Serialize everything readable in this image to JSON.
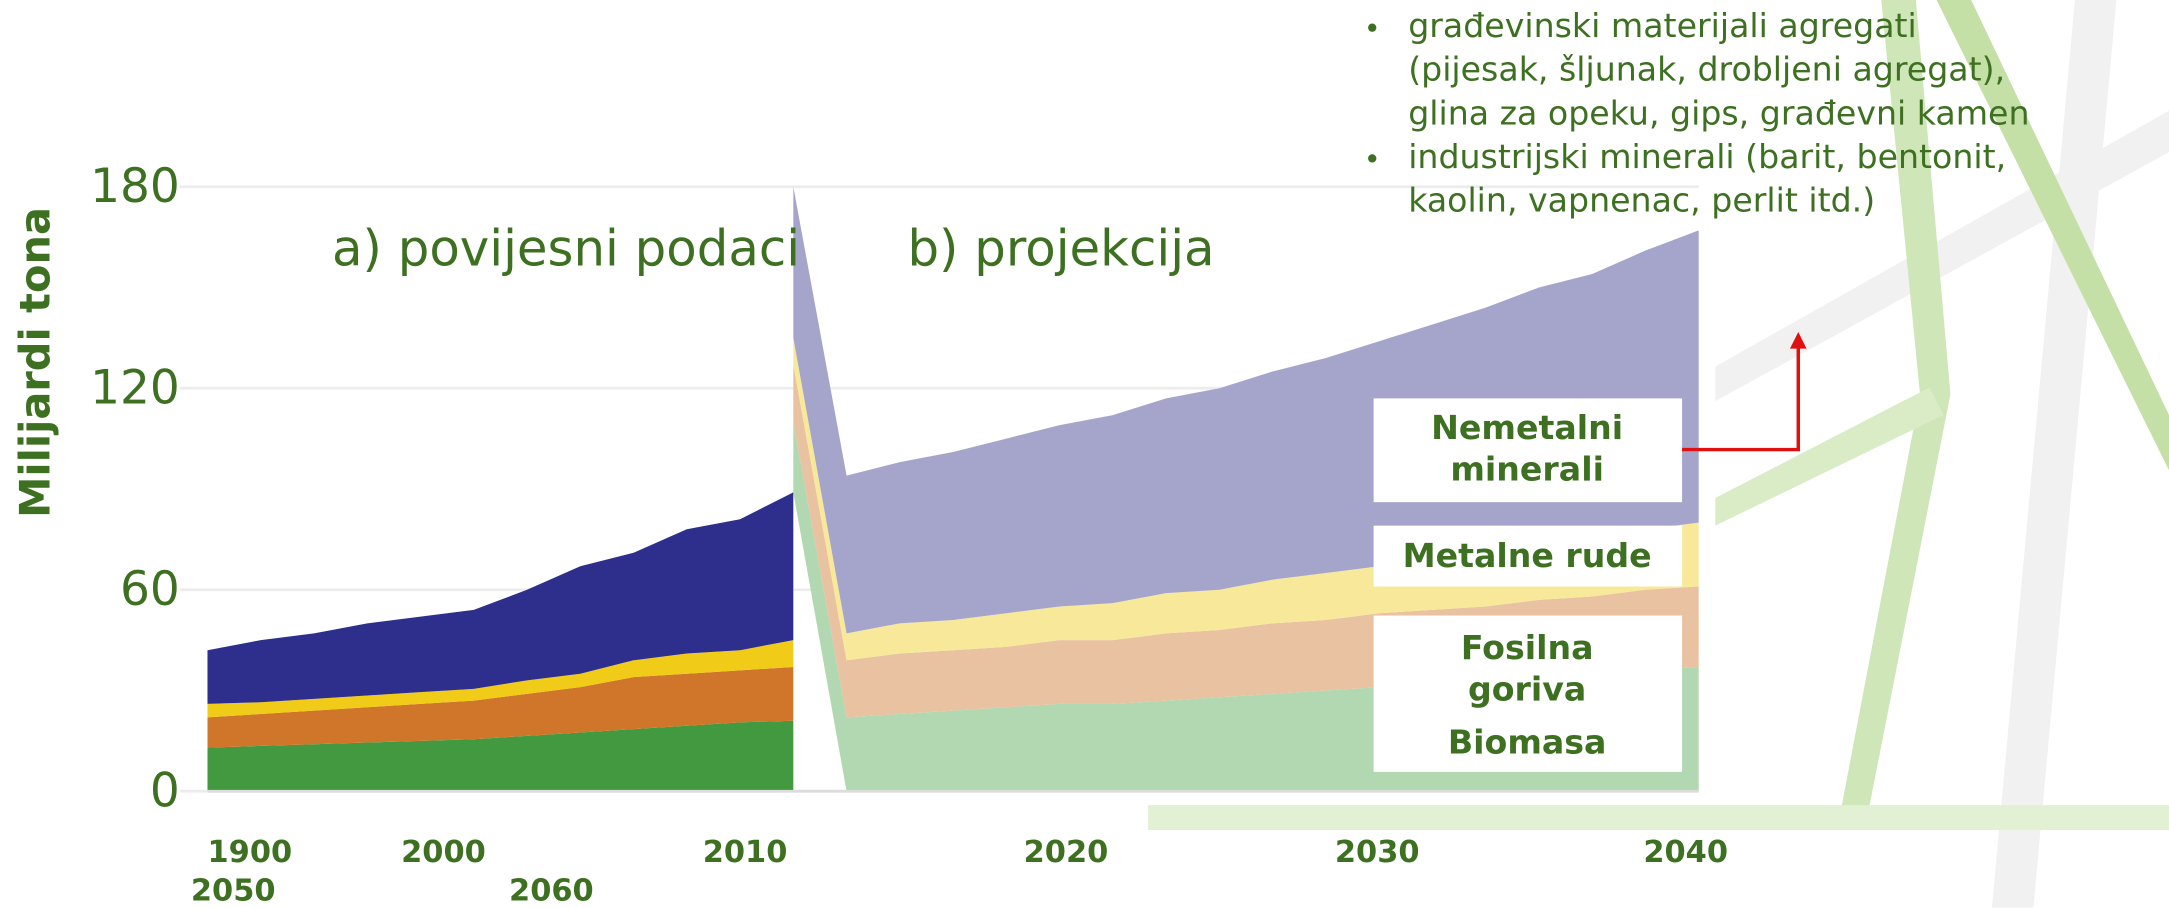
{
  "chart_data": {
    "type": "stacked-area",
    "y_label": "Milijardi tona",
    "annotations": [
      "a) povijesni podaci",
      "b) projekcija"
    ],
    "notes": [
      [
        "građevinski materijali agregati",
        "(pijesak, šljunak, drobljeni agregat),",
        "glina za opeku, gips, građevni kamen"
      ],
      [
        "industrijski minerali (barit, bentonit,",
        "kaolin, vapnenac, perlit itd.)"
      ]
    ],
    "x_axis_labels": [
      "1900",
      "2000",
      "2010",
      "2020",
      "2030",
      "2040",
      "2050",
      "2060"
    ],
    "categories": [
      null,
      null,
      null,
      null,
      null,
      null,
      null,
      null,
      null,
      null,
      null,
      null,
      null,
      null,
      null,
      null,
      null,
      null,
      null,
      null,
      null,
      null,
      null,
      null,
      null,
      null,
      null,
      null,
      null
    ],
    "ylim": [
      0,
      180
    ],
    "yticks": [
      0,
      60,
      120,
      180
    ],
    "grid": true,
    "series": [
      {
        "color": "#43993f",
        "values": [
          13,
          13.5,
          14,
          14.5,
          15,
          15.5,
          16.5,
          17.5,
          18.5,
          19.5,
          20.5,
          21,
          null,
          null,
          null,
          null,
          null,
          null,
          null,
          null,
          null,
          null,
          null,
          null,
          null,
          null,
          null,
          null,
          null
        ]
      },
      {
        "color": "#d0762a",
        "values": [
          9,
          9.5,
          10,
          10.5,
          11,
          11.5,
          12.5,
          13.5,
          15.5,
          15.5,
          15.5,
          16,
          null,
          null,
          null,
          null,
          null,
          null,
          null,
          null,
          null,
          null,
          null,
          null,
          null,
          null,
          null,
          null,
          null
        ]
      },
      {
        "color": "#f0cc18",
        "values": [
          4,
          3.5,
          3.5,
          3.5,
          3.5,
          3.5,
          4,
          4,
          5,
          6,
          6,
          8,
          null,
          null,
          null,
          null,
          null,
          null,
          null,
          null,
          null,
          null,
          null,
          null,
          null,
          null,
          null,
          null,
          null
        ]
      },
      {
        "color": "#2e2e8c",
        "values": [
          16,
          18.5,
          19.5,
          21.5,
          22.5,
          23.5,
          27,
          32,
          32,
          37,
          39,
          44,
          null,
          null,
          null,
          null,
          null,
          null,
          null,
          null,
          null,
          null,
          null,
          null,
          null,
          null,
          null,
          null,
          null
        ]
      },
      {
        "name": "Biomasa",
        "color": "#b1d8b0",
        "values": [
          null,
          null,
          null,
          null,
          null,
          null,
          null,
          null,
          null,
          null,
          null,
          21,
          22,
          23,
          24,
          25,
          26,
          26,
          27,
          28,
          29,
          30,
          31,
          32,
          33,
          34,
          35,
          36,
          37
        ]
      },
      {
        "name": "Fosilna goriva",
        "color": "#e8c2a1",
        "values": [
          null,
          null,
          null,
          null,
          null,
          null,
          null,
          null,
          null,
          null,
          null,
          17,
          17,
          18,
          18,
          18,
          19,
          19,
          20,
          20,
          21,
          21,
          22,
          22,
          22,
          23,
          23,
          24,
          24
        ]
      },
      {
        "name": "Metalne rude",
        "color": "#f8e89a",
        "values": [
          null,
          null,
          null,
          null,
          null,
          null,
          null,
          null,
          null,
          null,
          null,
          8,
          8,
          9,
          9,
          10,
          10,
          11,
          12,
          12,
          13,
          14,
          14,
          15,
          16,
          17,
          17,
          18,
          19
        ]
      },
      {
        "name": "Nemetalni minerali",
        "color": "#a5a5cc",
        "values": [
          null,
          null,
          null,
          null,
          null,
          null,
          null,
          null,
          null,
          null,
          null,
          45,
          47,
          48,
          50,
          52,
          54,
          56,
          58,
          60,
          62,
          64,
          67,
          70,
          73,
          76,
          79,
          83,
          87
        ]
      }
    ]
  }
}
